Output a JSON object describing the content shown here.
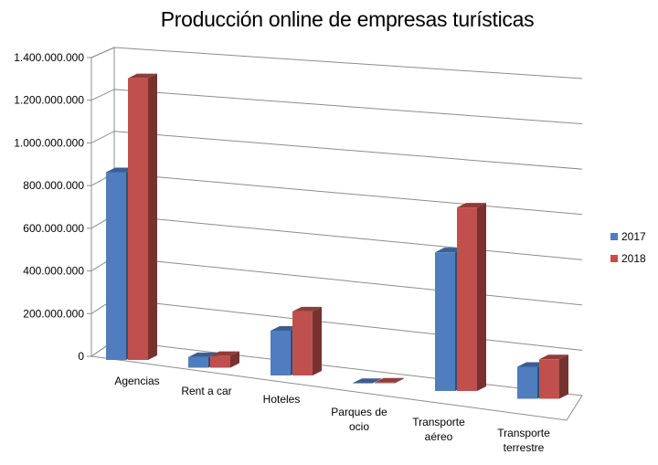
{
  "chart_data": {
    "type": "bar",
    "title": "Producción online de empresas turísticas",
    "categories": [
      [
        "Agencias"
      ],
      [
        "Rent a car"
      ],
      [
        "Hoteles"
      ],
      [
        "Parques de",
        "ocio"
      ],
      [
        "Transporte",
        "aéreo"
      ],
      [
        "Transporte",
        "terrestre"
      ]
    ],
    "series": [
      {
        "name": "2017",
        "color": "#4F7DC0",
        "values": [
          880000000,
          50000000,
          210000000,
          1000000,
          650000000,
          150000000
        ]
      },
      {
        "name": "2018",
        "color": "#C0504D",
        "values": [
          1320000000,
          55000000,
          300000000,
          3000000,
          860000000,
          185000000
        ]
      }
    ],
    "yticks": [
      "0",
      "200.000.000",
      "400.000.000",
      "600.000.000",
      "800.000.000",
      "1.000.000.000",
      "1.200.000.000",
      "1.400.000.000"
    ],
    "ylim": [
      0,
      1400000000
    ],
    "grid": true,
    "legend_position": "right"
  }
}
